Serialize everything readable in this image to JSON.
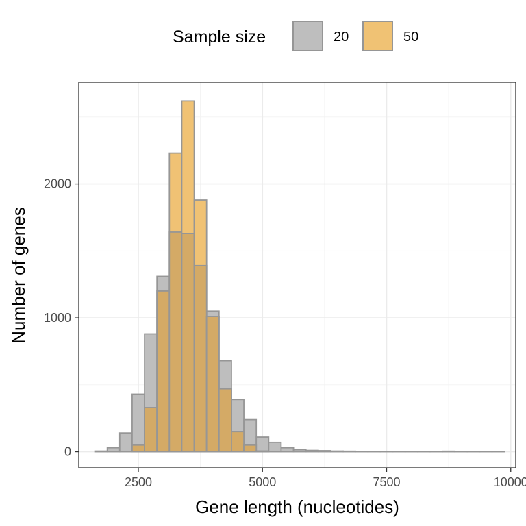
{
  "chart_data": {
    "type": "histogram",
    "xlabel": "Gene length (nucleotides)",
    "ylabel": "Number of genes",
    "xlim": [
      1300,
      10100
    ],
    "ylim": [
      -120,
      2760
    ],
    "x_ticks": [
      2500,
      5000,
      7500,
      10000
    ],
    "x_tick_labels": [
      "2500",
      "5000",
      "7500",
      "10000"
    ],
    "y_ticks": [
      0,
      1000,
      2000
    ],
    "y_tick_labels": [
      "0",
      "1000",
      "2000"
    ],
    "grid": true,
    "bin_width": 250,
    "bin_starts": [
      1625,
      1875,
      2125,
      2375,
      2625,
      2875,
      3125,
      3375,
      3625,
      3875,
      4125,
      4375,
      4625,
      4875,
      5125,
      5375,
      5625,
      5875,
      6125,
      6375,
      6625,
      6875,
      7125,
      7375,
      7625,
      7875,
      8125,
      8375,
      8625,
      8875,
      9125,
      9375,
      9625
    ],
    "legend": {
      "title": "Sample size",
      "position": "top"
    },
    "series": [
      {
        "name": "20",
        "fill": "#bebebe",
        "values": [
          5,
          30,
          140,
          430,
          880,
          1310,
          1640,
          1630,
          1390,
          1050,
          680,
          390,
          240,
          110,
          70,
          30,
          15,
          10,
          8,
          5,
          4,
          3,
          3,
          3,
          3,
          2,
          2,
          3,
          4,
          3,
          2,
          3,
          2
        ]
      },
      {
        "name": "50",
        "fill": "#f0c274",
        "values": [
          0,
          0,
          0,
          50,
          330,
          1200,
          2230,
          2620,
          1880,
          1010,
          470,
          150,
          50,
          5,
          0,
          0,
          0,
          0,
          0,
          0,
          0,
          0,
          0,
          0,
          0,
          0,
          0,
          0,
          0,
          0,
          0,
          0,
          0
        ]
      }
    ],
    "overlap_fill": "#d4aa66",
    "bar_stroke": "#969696"
  }
}
